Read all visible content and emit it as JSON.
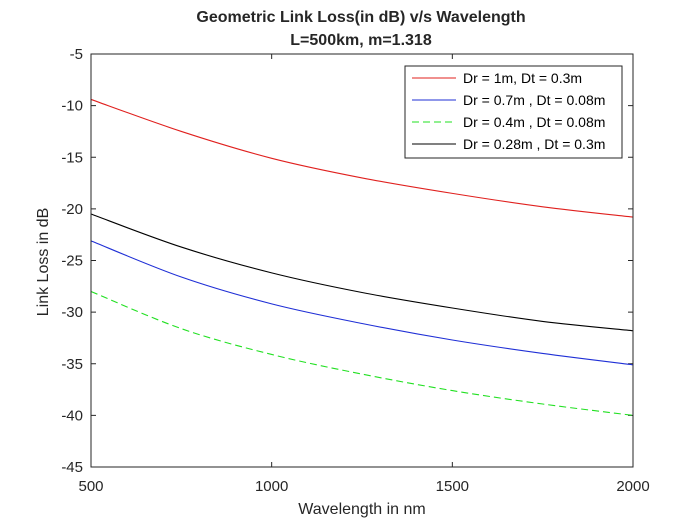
{
  "chart_data": {
    "type": "line",
    "title": "Geometric Link Loss(in dB) v/s Wavelength",
    "subtitle": "L=500km, m=1.318",
    "xlabel": "Wavelength in nm",
    "ylabel": "Link Loss in dB",
    "xlim": [
      500,
      2000
    ],
    "ylim": [
      -45,
      -5
    ],
    "xticks": [
      500,
      1000,
      1500,
      2000
    ],
    "yticks": [
      -5,
      -10,
      -15,
      -20,
      -25,
      -30,
      -35,
      -40,
      -45
    ],
    "grid": false,
    "legend_position": "top-right",
    "x": [
      500,
      750,
      1000,
      1250,
      1500,
      1750,
      2000
    ],
    "series": [
      {
        "name": "Dr = 1m, Dt = 0.3m",
        "color": "#e0201e",
        "dash": "solid",
        "values": [
          -9.4,
          -12.5,
          -15.1,
          -17.0,
          -18.5,
          -19.8,
          -20.8
        ]
      },
      {
        "name": "Dr = 0.7m , Dt = 0.08m",
        "color": "#1f2fd6",
        "dash": "solid",
        "values": [
          -23.1,
          -26.6,
          -29.2,
          -31.1,
          -32.7,
          -34.0,
          -35.1
        ]
      },
      {
        "name": "Dr = 0.4m , Dt = 0.08m",
        "color": "#22e022",
        "dash": "dashed",
        "values": [
          -28.0,
          -31.6,
          -34.1,
          -36.0,
          -37.6,
          -38.9,
          -40.0
        ]
      },
      {
        "name": "Dr = 0.28m , Dt = 0.3m",
        "color": "#000000",
        "dash": "solid",
        "values": [
          -20.5,
          -23.7,
          -26.2,
          -28.1,
          -29.6,
          -30.9,
          -31.8
        ]
      }
    ]
  }
}
